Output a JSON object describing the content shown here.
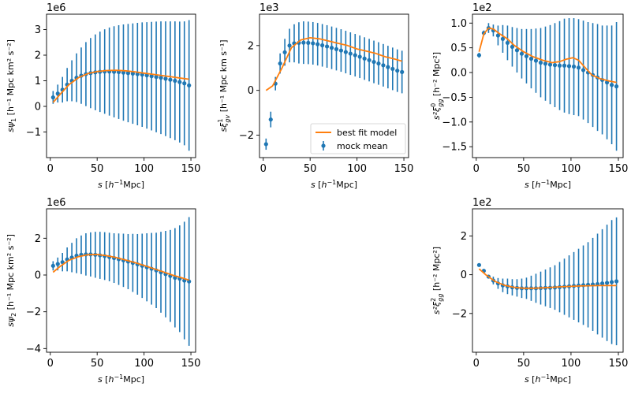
{
  "chart_data": [
    {
      "id": "psi1",
      "type": "errorbar",
      "xlabel": "s [h^-1 Mpc]",
      "ylabel_main": "sψ",
      "ylabel_sub": "1",
      "ylabel_unit": "[h⁻¹ Mpc km² s⁻²]",
      "scale_label": "1e6",
      "xlim": [
        -4,
        155
      ],
      "ylim": [
        -2.0,
        3.6
      ],
      "xticks": [
        0,
        50,
        100,
        150
      ],
      "yticks": [
        -1,
        0,
        1,
        2,
        3
      ],
      "series": [
        {
          "name": "mock mean",
          "kind": "errorbar",
          "color": "#1f77b4",
          "x": [
            3,
            8,
            13,
            18,
            23,
            28,
            33,
            38,
            43,
            48,
            53,
            58,
            63,
            68,
            73,
            78,
            83,
            88,
            93,
            98,
            103,
            108,
            113,
            118,
            123,
            128,
            133,
            138,
            143,
            148
          ],
          "y": [
            0.35,
            0.5,
            0.65,
            0.85,
            1.0,
            1.12,
            1.2,
            1.26,
            1.3,
            1.33,
            1.35,
            1.36,
            1.36,
            1.35,
            1.34,
            1.32,
            1.3,
            1.28,
            1.26,
            1.24,
            1.21,
            1.18,
            1.15,
            1.12,
            1.08,
            1.04,
            1.0,
            0.95,
            0.9,
            0.82
          ],
          "yerr": [
            0.25,
            0.35,
            0.5,
            0.65,
            0.8,
            0.95,
            1.1,
            1.25,
            1.37,
            1.48,
            1.57,
            1.65,
            1.72,
            1.78,
            1.83,
            1.88,
            1.92,
            1.96,
            2.0,
            2.04,
            2.08,
            2.12,
            2.16,
            2.2,
            2.24,
            2.28,
            2.32,
            2.36,
            2.42,
            2.55
          ]
        },
        {
          "name": "best fit model",
          "kind": "line",
          "color": "#ff7f0e",
          "x": [
            3,
            10,
            20,
            30,
            40,
            50,
            60,
            70,
            80,
            90,
            100,
            110,
            120,
            130,
            140,
            148
          ],
          "y": [
            0.15,
            0.45,
            0.85,
            1.12,
            1.28,
            1.36,
            1.4,
            1.41,
            1.39,
            1.35,
            1.3,
            1.25,
            1.2,
            1.15,
            1.1,
            1.06
          ]
        }
      ]
    },
    {
      "id": "xi1_gv",
      "type": "errorbar",
      "xlabel": "s [h^-1 Mpc]",
      "ylabel_main": "sξ",
      "ylabel_sub": "gv",
      "ylabel_sup": "1",
      "ylabel_unit": "[h⁻¹ Mpc km s⁻¹]",
      "scale_label": "1e3",
      "xlim": [
        -4,
        155
      ],
      "ylim": [
        -3.0,
        3.4
      ],
      "xticks": [
        0,
        50,
        100,
        150
      ],
      "yticks": [
        -2,
        0,
        2
      ],
      "legend": [
        "best fit model",
        "mock mean"
      ],
      "series": [
        {
          "name": "mock mean",
          "kind": "errorbar",
          "color": "#1f77b4",
          "x": [
            3,
            8,
            13,
            18,
            23,
            28,
            33,
            38,
            43,
            48,
            53,
            58,
            63,
            68,
            73,
            78,
            83,
            88,
            93,
            98,
            103,
            108,
            113,
            118,
            123,
            128,
            133,
            138,
            143,
            148
          ],
          "y": [
            -2.4,
            -1.3,
            0.3,
            1.2,
            1.7,
            2.0,
            2.1,
            2.12,
            2.13,
            2.12,
            2.1,
            2.06,
            2.01,
            1.96,
            1.9,
            1.84,
            1.78,
            1.71,
            1.64,
            1.57,
            1.5,
            1.42,
            1.35,
            1.27,
            1.2,
            1.12,
            1.04,
            0.96,
            0.88,
            0.82
          ],
          "yerr": [
            0.25,
            0.35,
            0.3,
            0.45,
            0.6,
            0.75,
            0.85,
            0.92,
            0.95,
            0.95,
            0.95,
            0.95,
            0.95,
            0.95,
            0.95,
            0.95,
            0.95,
            0.95,
            0.95,
            0.95,
            0.95,
            0.95,
            0.95,
            0.95,
            0.95,
            0.95,
            0.95,
            0.95,
            0.95,
            0.95
          ]
        },
        {
          "name": "best fit model",
          "kind": "line",
          "color": "#ff7f0e",
          "x": [
            3,
            10,
            20,
            30,
            40,
            50,
            60,
            70,
            80,
            90,
            100,
            110,
            120,
            130,
            140,
            148
          ],
          "y": [
            0.0,
            0.2,
            1.0,
            1.9,
            2.25,
            2.35,
            2.3,
            2.2,
            2.1,
            2.0,
            1.85,
            1.75,
            1.65,
            1.5,
            1.4,
            1.3
          ]
        }
      ]
    },
    {
      "id": "xi0_gg",
      "type": "errorbar",
      "xlabel": "s [h^-1 Mpc]",
      "ylabel_main": "s²ξ",
      "ylabel_sub": "gg",
      "ylabel_sup": "0",
      "ylabel_unit": "[h⁻² Mpc²]",
      "scale_label": "1e2",
      "xlim": [
        -4,
        155
      ],
      "ylim": [
        -1.72,
        1.18
      ],
      "xticks": [
        0,
        50,
        100,
        150
      ],
      "yticks": [
        -1.5,
        -1.0,
        -0.5,
        0.0,
        0.5,
        1.0
      ],
      "series": [
        {
          "name": "mock mean",
          "kind": "errorbar",
          "color": "#1f77b4",
          "x": [
            3,
            8,
            13,
            18,
            23,
            28,
            33,
            38,
            43,
            48,
            53,
            58,
            63,
            68,
            73,
            78,
            83,
            88,
            93,
            98,
            103,
            108,
            113,
            118,
            123,
            128,
            133,
            138,
            143,
            148
          ],
          "y": [
            0.35,
            0.8,
            0.9,
            0.85,
            0.75,
            0.68,
            0.6,
            0.52,
            0.45,
            0.38,
            0.33,
            0.28,
            0.24,
            0.2,
            0.18,
            0.16,
            0.15,
            0.14,
            0.14,
            0.13,
            0.12,
            0.1,
            0.05,
            0.0,
            -0.05,
            -0.1,
            -0.15,
            -0.2,
            -0.25,
            -0.28
          ],
          "yerr": [
            0.05,
            0.05,
            0.1,
            0.12,
            0.2,
            0.28,
            0.35,
            0.4,
            0.45,
            0.5,
            0.55,
            0.6,
            0.65,
            0.7,
            0.75,
            0.8,
            0.85,
            0.9,
            0.95,
            0.97,
            0.98,
            0.98,
            1.0,
            1.02,
            1.05,
            1.08,
            1.1,
            1.15,
            1.2,
            1.3
          ]
        },
        {
          "name": "best fit model",
          "kind": "line",
          "color": "#ff7f0e",
          "x": [
            3,
            8,
            13,
            18,
            25,
            33,
            40,
            50,
            60,
            70,
            80,
            88,
            95,
            102,
            108,
            115,
            122,
            130,
            140,
            148
          ],
          "y": [
            0.42,
            0.78,
            0.9,
            0.88,
            0.78,
            0.68,
            0.55,
            0.42,
            0.32,
            0.25,
            0.2,
            0.22,
            0.27,
            0.3,
            0.25,
            0.1,
            -0.05,
            -0.12,
            -0.17,
            -0.2
          ]
        }
      ]
    },
    {
      "id": "psi2",
      "type": "errorbar",
      "xlabel": "s [h^-1 Mpc]",
      "ylabel_main": "sψ",
      "ylabel_sub": "2",
      "ylabel_unit": "[h⁻¹ Mpc km² s⁻²]",
      "scale_label": "1e6",
      "xlim": [
        -4,
        155
      ],
      "ylim": [
        -4.2,
        3.6
      ],
      "xticks": [
        0,
        50,
        100,
        150
      ],
      "yticks": [
        -4,
        -2,
        0,
        2
      ],
      "series": [
        {
          "name": "mock mean",
          "kind": "errorbar",
          "color": "#1f77b4",
          "x": [
            3,
            8,
            13,
            18,
            23,
            28,
            33,
            38,
            43,
            48,
            53,
            58,
            63,
            68,
            73,
            78,
            83,
            88,
            93,
            98,
            103,
            108,
            113,
            118,
            123,
            128,
            133,
            138,
            143,
            148
          ],
          "y": [
            0.5,
            0.6,
            0.7,
            0.85,
            0.95,
            1.05,
            1.1,
            1.12,
            1.12,
            1.1,
            1.07,
            1.03,
            0.98,
            0.92,
            0.86,
            0.8,
            0.73,
            0.66,
            0.58,
            0.5,
            0.42,
            0.34,
            0.25,
            0.15,
            0.05,
            -0.05,
            -0.15,
            -0.2,
            -0.3,
            -0.35
          ],
          "yerr": [
            0.25,
            0.35,
            0.5,
            0.65,
            0.8,
            0.95,
            1.05,
            1.15,
            1.2,
            1.25,
            1.28,
            1.3,
            1.32,
            1.35,
            1.4,
            1.45,
            1.5,
            1.58,
            1.65,
            1.75,
            1.85,
            1.95,
            2.05,
            2.2,
            2.35,
            2.5,
            2.7,
            2.9,
            3.2,
            3.5
          ]
        },
        {
          "name": "best fit model",
          "kind": "line",
          "color": "#ff7f0e",
          "x": [
            3,
            10,
            20,
            30,
            40,
            50,
            60,
            70,
            80,
            90,
            100,
            110,
            120,
            130,
            140,
            148
          ],
          "y": [
            0.15,
            0.45,
            0.8,
            1.0,
            1.1,
            1.12,
            1.05,
            0.95,
            0.82,
            0.68,
            0.52,
            0.35,
            0.18,
            0.0,
            -0.15,
            -0.28
          ]
        }
      ]
    },
    {
      "id": "xi2_gg",
      "type": "errorbar",
      "xlabel": "s [h^-1 Mpc]",
      "ylabel_main": "s²ξ",
      "ylabel_sub": "gg",
      "ylabel_sup": "2",
      "ylabel_unit": "[h⁻² Mpc²]",
      "scale_label": "1e2",
      "xlim": [
        -4,
        155
      ],
      "ylim": [
        -4.0,
        3.4
      ],
      "xticks": [
        0,
        50,
        100,
        150
      ],
      "yticks": [
        -2,
        0,
        2
      ],
      "series": [
        {
          "name": "mock mean",
          "kind": "errorbar",
          "color": "#1f77b4",
          "x": [
            3,
            8,
            13,
            18,
            23,
            28,
            33,
            38,
            43,
            48,
            53,
            58,
            63,
            68,
            73,
            78,
            83,
            88,
            93,
            98,
            103,
            108,
            113,
            118,
            123,
            128,
            133,
            138,
            143,
            148
          ],
          "y": [
            0.5,
            0.2,
            -0.1,
            -0.3,
            -0.45,
            -0.55,
            -0.6,
            -0.65,
            -0.68,
            -0.7,
            -0.7,
            -0.7,
            -0.7,
            -0.69,
            -0.68,
            -0.67,
            -0.66,
            -0.64,
            -0.62,
            -0.6,
            -0.58,
            -0.56,
            -0.54,
            -0.52,
            -0.5,
            -0.48,
            -0.45,
            -0.42,
            -0.38,
            -0.34
          ],
          "yerr": [
            0.05,
            0.1,
            0.1,
            0.2,
            0.28,
            0.35,
            0.4,
            0.42,
            0.45,
            0.5,
            0.55,
            0.65,
            0.75,
            0.85,
            0.95,
            1.05,
            1.15,
            1.3,
            1.45,
            1.6,
            1.75,
            1.9,
            2.05,
            2.2,
            2.4,
            2.6,
            2.8,
            3.0,
            3.2,
            3.3
          ]
        },
        {
          "name": "best fit model",
          "kind": "line",
          "color": "#ff7f0e",
          "x": [
            3,
            10,
            20,
            30,
            40,
            50,
            60,
            70,
            80,
            90,
            100,
            110,
            120,
            130,
            140,
            148
          ],
          "y": [
            0.3,
            0.0,
            -0.35,
            -0.55,
            -0.65,
            -0.7,
            -0.7,
            -0.68,
            -0.65,
            -0.62,
            -0.6,
            -0.58,
            -0.57,
            -0.56,
            -0.56,
            -0.56
          ]
        }
      ]
    }
  ]
}
